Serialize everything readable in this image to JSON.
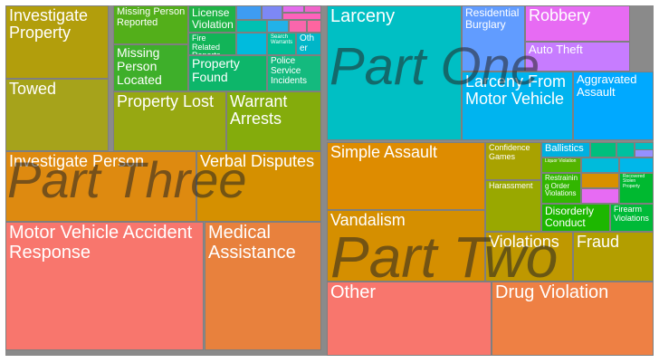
{
  "chart_data": {
    "type": "treemap",
    "value_estimates_note_free": true,
    "groups": [
      {
        "name": "Part Three",
        "tiles": [
          {
            "label": "Motor Vehicle Accident Response",
            "value": 9200,
            "color": "#F8766D"
          },
          {
            "label": "Medical Assistance",
            "value": 5400,
            "color": "#E8813D"
          },
          {
            "label": "Investigate Person",
            "value": 4400,
            "color": "#DE8A10"
          },
          {
            "label": "Verbal Disputes",
            "value": 2800,
            "color": "#D59000"
          },
          {
            "label": "Investigate Property",
            "value": 2900,
            "color": "#B29E0C"
          },
          {
            "label": "Towed",
            "value": 2700,
            "color": "#A6A31B"
          },
          {
            "label": "Property Lost",
            "value": 2300,
            "color": "#97A812"
          },
          {
            "label": "Warrant Arrests",
            "value": 2000,
            "color": "#84AC0C"
          },
          {
            "label": "Missing Person Reported",
            "value": 500,
            "color": "#53AF1A"
          },
          {
            "label": "Missing Person Located",
            "value": 1300,
            "color": "#3EAF2A"
          },
          {
            "label": "License Violation",
            "value": 490,
            "color": "#1FB346"
          },
          {
            "label": "Fire Related Reports",
            "value": 490,
            "color": "#12B458"
          },
          {
            "label": "Property Found",
            "value": 880,
            "color": "#0DB66A"
          },
          {
            "label": "Police Service Incidents",
            "value": 680,
            "color": "#14BA7E"
          },
          {
            "label": "Search Warrants",
            "value": 230,
            "color": "#00BE98"
          },
          {
            "label": "Other",
            "value": 180,
            "color": "#00B6C8"
          },
          {
            "label": "",
            "value": 270,
            "color": "#00C0B2"
          },
          {
            "label": "",
            "value": 100,
            "color": "#3E9CF2"
          },
          {
            "label": "",
            "value": 120,
            "color": "#7D88F5"
          },
          {
            "label": "",
            "value": 70,
            "color": "#E46BEC"
          },
          {
            "label": "",
            "value": 50,
            "color": "#F163C9"
          },
          {
            "label": "",
            "value": 40,
            "color": "#FF62BC"
          },
          {
            "label": "",
            "value": 60,
            "color": "#00BBDD"
          },
          {
            "label": "",
            "value": 70,
            "color": "#22B2E8"
          },
          {
            "label": "",
            "value": 50,
            "color": "#FA66AC"
          },
          {
            "label": "",
            "value": 50,
            "color": "#FF65A0"
          }
        ]
      },
      {
        "name": "Part One",
        "tiles": [
          {
            "label": "Larceny",
            "value": 6000,
            "color": "#00BFC4"
          },
          {
            "label": "Residential Burglary",
            "value": 1300,
            "color": "#619CFF"
          },
          {
            "label": "Robbery",
            "value": 1300,
            "color": "#E76BF3"
          },
          {
            "label": "Auto Theft",
            "value": 1000,
            "color": "#C77CFF"
          },
          {
            "label": "Larceny From Motor Vehicle",
            "value": 2500,
            "color": "#00B4EF"
          },
          {
            "label": "Aggravated Assault",
            "value": 1500,
            "color": "#00A9FF"
          }
        ]
      },
      {
        "name": "Part Two",
        "tiles": [
          {
            "label": "Other",
            "value": 7000,
            "color": "#F8766D"
          },
          {
            "label": "Drug Violation",
            "value": 5500,
            "color": "#EE8044"
          },
          {
            "label": "Simple Assault",
            "value": 4200,
            "color": "#DE8C00"
          },
          {
            "label": "Vandalism",
            "value": 3500,
            "color": "#D58F00"
          },
          {
            "label": "Violations",
            "value": 1600,
            "color": "#BF9800"
          },
          {
            "label": "Fraud",
            "value": 1300,
            "color": "#B39E00"
          },
          {
            "label": "Confidence Games",
            "value": 800,
            "color": "#A9A200"
          },
          {
            "label": "Harassment",
            "value": 700,
            "color": "#99A800"
          },
          {
            "label": "Ballistics",
            "value": 400,
            "color": "#00B0E0"
          },
          {
            "label": "Liquor Violation",
            "value": 300,
            "color": "#53B400"
          },
          {
            "label": "Restraining Order Violations",
            "value": 500,
            "color": "#32B600"
          },
          {
            "label": "Recovered Stolen Property",
            "value": 400,
            "color": "#00B930"
          },
          {
            "label": "Disorderly Conduct",
            "value": 550,
            "color": "#1DB700"
          },
          {
            "label": "Firearm Violations",
            "value": 400,
            "color": "#00BA38"
          },
          {
            "label": "",
            "value": 150,
            "color": "#00BF7D"
          },
          {
            "label": "",
            "value": 120,
            "color": "#00C19F"
          },
          {
            "label": "",
            "value": 100,
            "color": "#00BFC4"
          },
          {
            "label": "",
            "value": 90,
            "color": "#00BBDB"
          },
          {
            "label": "",
            "value": 80,
            "color": "#00B7EA"
          },
          {
            "label": "",
            "value": 70,
            "color": "#9590FF"
          },
          {
            "label": "",
            "value": 60,
            "color": "#D89000"
          },
          {
            "label": "",
            "value": 60,
            "color": "#E76BF3"
          },
          {
            "label": "",
            "value": 50,
            "color": "#FA62DB"
          },
          {
            "label": "",
            "value": 50,
            "color": "#FF62BC"
          },
          {
            "label": "",
            "value": 40,
            "color": "#C49A00"
          }
        ]
      }
    ]
  }
}
